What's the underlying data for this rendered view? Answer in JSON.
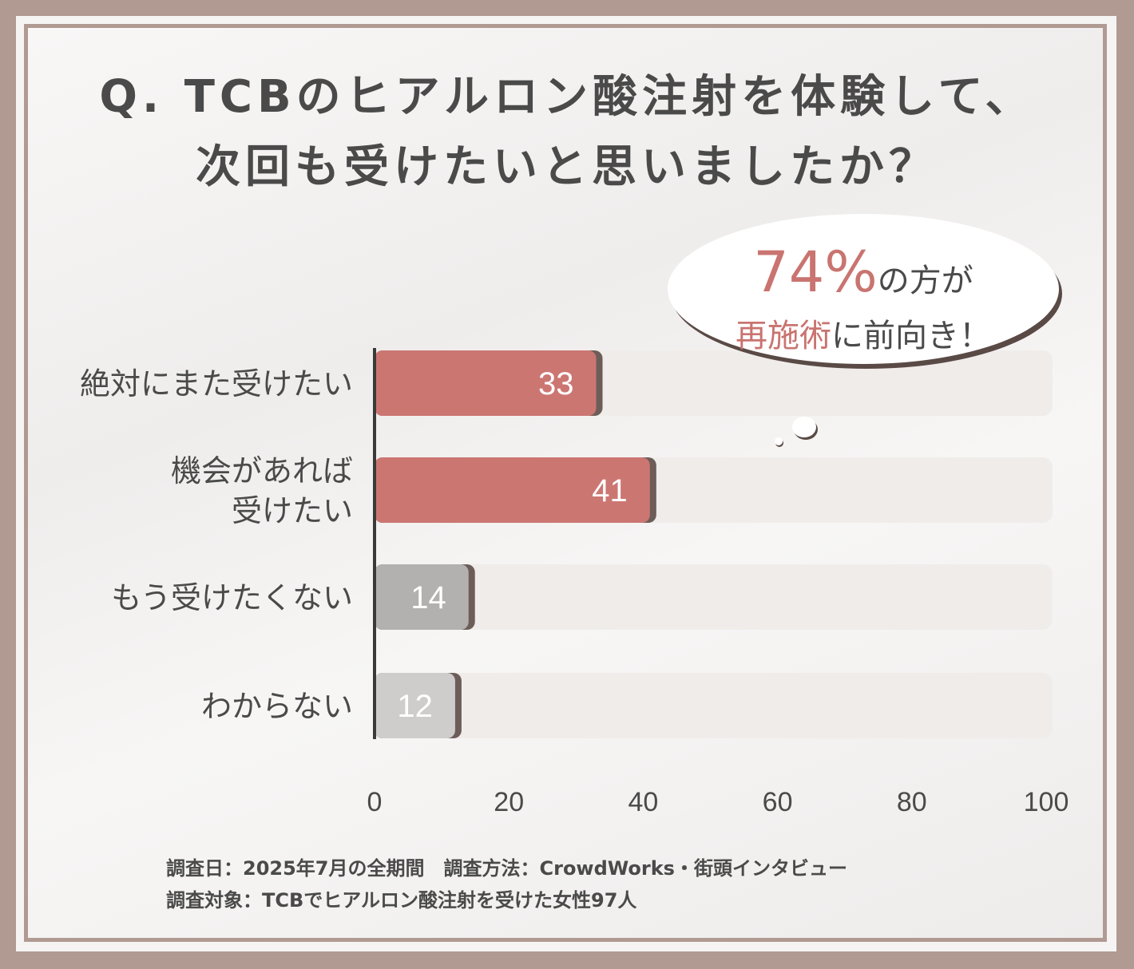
{
  "title": {
    "line1": "Q. TCBのヒアルロン酸注射を体験して、",
    "line2": "次回も受けたいと思いましたか？"
  },
  "bubble": {
    "percent": "74%",
    "text1": "の方が",
    "accent": "再施術",
    "text2": "に前向き！"
  },
  "footer": {
    "line1": "調査日：2025年7月の全期間　調査方法：CrowdWorks・街頭インタビュー",
    "line2": "調査対象：TCBでヒアルロン酸注射を受けた女性97人"
  },
  "colors": {
    "accent": "#cc7672",
    "gray": "#b3b1b0",
    "light_gray": "#cfcdcc",
    "track": "#f0ecea",
    "text": "#4a4a4a",
    "border": "#b09a92"
  },
  "chart_data": {
    "type": "bar",
    "orientation": "horizontal",
    "categories": [
      "絶対にまた受けたい",
      "機会があれば\n受けたい",
      "もう受けたくない",
      "わからない"
    ],
    "values": [
      33,
      41,
      14,
      12
    ],
    "data_labels": [
      "33",
      "41",
      "14",
      "12"
    ],
    "xlim": [
      0,
      100
    ],
    "xticks": [
      "0",
      "20",
      "40",
      "60",
      "80",
      "100"
    ],
    "grid": false,
    "legend": "none"
  }
}
